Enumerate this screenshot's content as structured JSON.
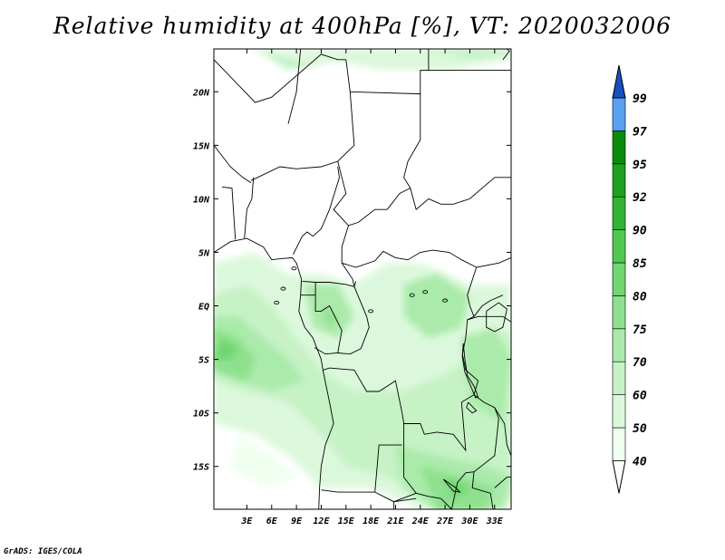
{
  "title": "Relative humidity at 400hPa [%], VT: 2020032006",
  "credit": "GrADS: IGES/COLA",
  "map": {
    "lon_range": [
      -1,
      35
    ],
    "lat_range": [
      -19,
      24
    ],
    "lon_ticks": [
      3,
      6,
      9,
      12,
      15,
      18,
      21,
      24,
      27,
      30,
      33
    ],
    "lon_tick_labels": [
      "3E",
      "6E",
      "9E",
      "12E",
      "15E",
      "18E",
      "21E",
      "24E",
      "27E",
      "30E",
      "33E"
    ],
    "lat_ticks": [
      20,
      15,
      10,
      5,
      0,
      -5,
      -10,
      -15
    ],
    "lat_tick_labels": [
      "20N",
      "15N",
      "10N",
      "5N",
      "EQ",
      "5S",
      "10S",
      "15S"
    ]
  },
  "colorbar": {
    "levels": [
      "40",
      "50",
      "60",
      "70",
      "75",
      "80",
      "85",
      "90",
      "92",
      "95",
      "97",
      "99"
    ],
    "colors": [
      "#f0fff0",
      "#dcf8dc",
      "#c6f2c6",
      "#aaeaaa",
      "#8ee08e",
      "#70d670",
      "#50c850",
      "#32b432",
      "#1ea01e",
      "#0a8c0a",
      "#5aa0f0",
      "#2a78e0",
      "#1450c0"
    ],
    "under_color": "#ffffff"
  },
  "chart_data": {
    "type": "heatmap",
    "title": "Relative humidity at 400hPa [%], VT: 2020032006",
    "xlabel": "",
    "ylabel": "",
    "x_range": [
      -1,
      35
    ],
    "y_range": [
      -19,
      24
    ],
    "units": "%",
    "levels": [
      40,
      50,
      60,
      70,
      75,
      80,
      85,
      90,
      92,
      95,
      97,
      99
    ],
    "regions": [
      {
        "lon": 2,
        "lat": -3,
        "value": 80
      },
      {
        "lon": 1,
        "lat": -2,
        "value": 75
      },
      {
        "lon": 5,
        "lat": -5,
        "value": 75
      },
      {
        "lon": 13,
        "lat": 0,
        "value": 80
      },
      {
        "lon": 27,
        "lat": 0,
        "value": 75
      },
      {
        "lon": 19,
        "lat": -8,
        "value": 60
      },
      {
        "lon": 27,
        "lat": -17,
        "value": 80
      },
      {
        "lon": 31,
        "lat": -5,
        "value": 70
      },
      {
        "lon": 10,
        "lat": 23,
        "value": 60
      },
      {
        "lon": 27,
        "lat": 23,
        "value": 60
      }
    ]
  }
}
